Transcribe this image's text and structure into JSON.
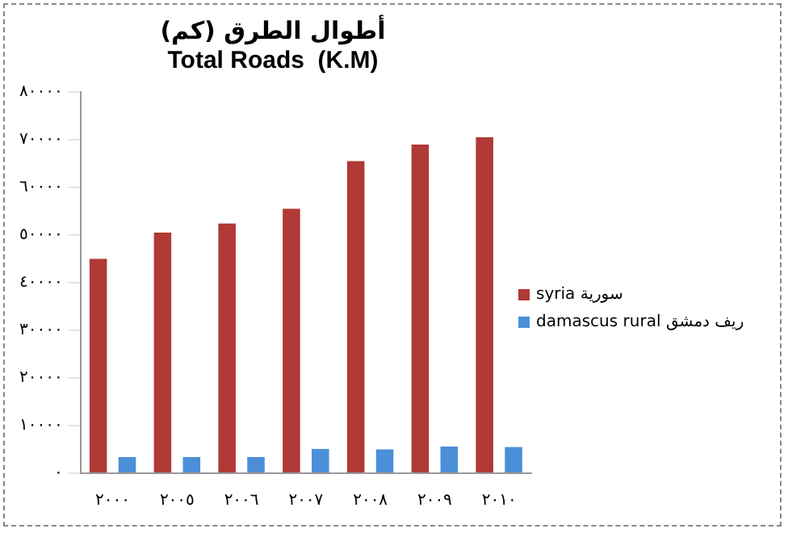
{
  "chart_data": {
    "type": "bar",
    "title": "أطوال الطرق (كم)",
    "subtitle": "Total Roads  (K.M)",
    "categories": [
      "٢٠٠٠",
      "٢٠٠٥",
      "٢٠٠٦",
      "٢٠٠٧",
      "٢٠٠٨",
      "٢٠٠٩",
      "٢٠١٠"
    ],
    "series": [
      {
        "name": "syria سورية",
        "color": "#b03a35",
        "values": [
          45000,
          50500,
          52400,
          55500,
          65500,
          69000,
          70500
        ]
      },
      {
        "name": "damascus rural  ريف دمشق",
        "color": "#4a8fd8",
        "values": [
          3400,
          3400,
          3400,
          5100,
          5000,
          5600,
          5500
        ]
      }
    ],
    "ylim": [
      0,
      80000
    ],
    "yticks": [
      {
        "value": 0,
        "label": "٠"
      },
      {
        "value": 10000,
        "label": "١٠٠٠٠"
      },
      {
        "value": 20000,
        "label": "٢٠٠٠٠"
      },
      {
        "value": 30000,
        "label": "٣٠٠٠٠"
      },
      {
        "value": 40000,
        "label": "٤٠٠٠٠"
      },
      {
        "value": 50000,
        "label": "٥٠٠٠٠"
      },
      {
        "value": 60000,
        "label": "٦٠٠٠٠"
      },
      {
        "value": 70000,
        "label": "٧٠٠٠٠"
      },
      {
        "value": 80000,
        "label": "٨٠٠٠٠"
      }
    ],
    "grid": false,
    "legend": "right"
  }
}
